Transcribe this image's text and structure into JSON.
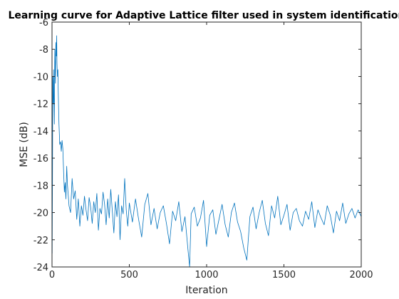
{
  "colors": {
    "line": "#0072bd",
    "axes": "#262626",
    "background": "#ffffff"
  },
  "chart_data": {
    "type": "line",
    "title": "Learning curve for Adaptive Lattice filter used in system identification",
    "xlabel": "Iteration",
    "ylabel": "MSE (dB)",
    "xlim": [
      0,
      2000
    ],
    "ylim": [
      -24,
      -6
    ],
    "xticks": [
      0,
      500,
      1000,
      1500,
      2000
    ],
    "yticks": [
      -24,
      -22,
      -20,
      -18,
      -16,
      -14,
      -12,
      -10,
      -8,
      -6
    ],
    "grid": false,
    "legend": "none",
    "series": [
      {
        "x": [
          0,
          1,
          3,
          5,
          8,
          10,
          12,
          15,
          18,
          20,
          22,
          25,
          28,
          30,
          32,
          35,
          38,
          40,
          45,
          50,
          55,
          60,
          65,
          70,
          75,
          80,
          85,
          90,
          95,
          100,
          110,
          120,
          130,
          140,
          150,
          160,
          170,
          180,
          190,
          200,
          210,
          220,
          230,
          240,
          250,
          260,
          270,
          280,
          290,
          300,
          310,
          320,
          330,
          340,
          350,
          360,
          370,
          380,
          390,
          400,
          410,
          420,
          430,
          440,
          450,
          460,
          470,
          480,
          490,
          500,
          520,
          540,
          560,
          580,
          600,
          620,
          640,
          660,
          680,
          700,
          720,
          740,
          760,
          780,
          800,
          820,
          840,
          860,
          880,
          890,
          900,
          920,
          940,
          960,
          980,
          1000,
          1020,
          1040,
          1060,
          1080,
          1100,
          1120,
          1140,
          1160,
          1180,
          1200,
          1220,
          1240,
          1260,
          1280,
          1300,
          1320,
          1340,
          1360,
          1380,
          1400,
          1420,
          1440,
          1460,
          1480,
          1500,
          1520,
          1540,
          1560,
          1580,
          1600,
          1620,
          1640,
          1660,
          1680,
          1700,
          1720,
          1740,
          1760,
          1780,
          1800,
          1820,
          1840,
          1860,
          1880,
          1900,
          1920,
          1940,
          1960,
          1980,
          2000
        ],
        "y": [
          -17.5,
          -23.0,
          -18.0,
          -10.0,
          -12.0,
          -9.5,
          -11.5,
          -13.5,
          -8.0,
          -9.0,
          -10.5,
          -7.5,
          -8.5,
          -7.0,
          -9.0,
          -10.0,
          -9.5,
          -11.0,
          -13.5,
          -15.0,
          -14.8,
          -15.5,
          -14.7,
          -15.3,
          -17.0,
          -18.5,
          -17.8,
          -19.0,
          -16.6,
          -18.0,
          -19.5,
          -20.0,
          -17.5,
          -19.0,
          -18.4,
          -20.5,
          -19.0,
          -21.0,
          -19.5,
          -20.2,
          -18.8,
          -19.8,
          -20.6,
          -18.9,
          -19.6,
          -20.8,
          -19.2,
          -20.0,
          -18.6,
          -21.3,
          -19.7,
          -20.1,
          -18.5,
          -19.4,
          -20.9,
          -19.0,
          -20.4,
          -18.3,
          -19.9,
          -21.5,
          -19.2,
          -20.3,
          -18.7,
          -22.0,
          -19.5,
          -20.1,
          -17.5,
          -19.8,
          -21.0,
          -19.3,
          -20.7,
          -19.0,
          -20.5,
          -21.8,
          -19.4,
          -18.6,
          -20.9,
          -19.7,
          -21.2,
          -20.0,
          -19.5,
          -20.8,
          -22.3,
          -19.9,
          -20.6,
          -19.2,
          -21.4,
          -20.3,
          -22.8,
          -24.0,
          -20.1,
          -19.6,
          -21.0,
          -20.4,
          -19.1,
          -22.5,
          -20.2,
          -19.8,
          -21.6,
          -20.5,
          -19.4,
          -20.9,
          -21.8,
          -20.0,
          -19.3,
          -20.7,
          -21.4,
          -22.6,
          -23.5,
          -20.3,
          -19.6,
          -21.2,
          -20.0,
          -19.1,
          -20.8,
          -21.7,
          -19.5,
          -20.4,
          -18.8,
          -20.9,
          -20.2,
          -19.4,
          -21.3,
          -20.0,
          -19.7,
          -20.6,
          -21.0,
          -19.9,
          -20.5,
          -19.2,
          -21.1,
          -19.8,
          -20.4,
          -20.9,
          -19.5,
          -20.2,
          -21.5,
          -19.9,
          -20.6,
          -19.3,
          -20.8,
          -20.1,
          -19.7,
          -20.4,
          -19.8,
          -20.3
        ]
      }
    ]
  }
}
